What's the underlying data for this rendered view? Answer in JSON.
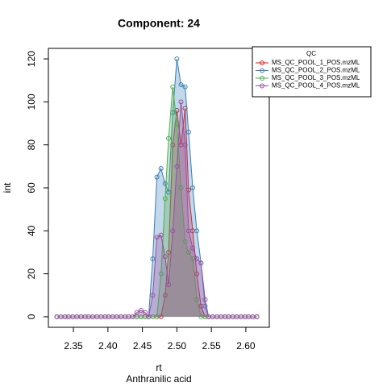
{
  "chart_data": {
    "type": "line",
    "title": "Component: 24",
    "xlabel": "rt",
    "ylabel": "int",
    "subtitle": "Anthranilic acid",
    "legend_title": "QC",
    "legend_position": "top-right",
    "area": true,
    "x": [
      2.326,
      2.332,
      2.338,
      2.343,
      2.349,
      2.355,
      2.361,
      2.367,
      2.372,
      2.378,
      2.384,
      2.39,
      2.396,
      2.401,
      2.407,
      2.413,
      2.419,
      2.425,
      2.43,
      2.436,
      2.442,
      2.448,
      2.454,
      2.459,
      2.465,
      2.471,
      2.477,
      2.483,
      2.488,
      2.494,
      2.5,
      2.506,
      2.512,
      2.517,
      2.523,
      2.529,
      2.535,
      2.541,
      2.546,
      2.552,
      2.558,
      2.564,
      2.57,
      2.575,
      2.581,
      2.587,
      2.593,
      2.599,
      2.604,
      2.61,
      2.616
    ],
    "series": [
      {
        "name": "MS_QC_POOL_1_POS.mzML",
        "color": "#E41A1C",
        "values": [
          0,
          0,
          0,
          0,
          0,
          0,
          0,
          0,
          0,
          0,
          0,
          0,
          0,
          0,
          0,
          0,
          0,
          0,
          0,
          0,
          0,
          0,
          0,
          0,
          0,
          0,
          0,
          10,
          30,
          80,
          96,
          80,
          97,
          59,
          40,
          20,
          5,
          0,
          0,
          0,
          0,
          0,
          0,
          0,
          0,
          0,
          0,
          0,
          0,
          0,
          0
        ]
      },
      {
        "name": "MS_QC_POOL_2_POS.mzML",
        "color": "#377EB8",
        "values": [
          0,
          0,
          0,
          0,
          0,
          0,
          0,
          0,
          0,
          0,
          0,
          0,
          0,
          0,
          0,
          0,
          0,
          0,
          0,
          0,
          0,
          0,
          0,
          0,
          27,
          65,
          69,
          62,
          58,
          95,
          120,
          108,
          107,
          86,
          60,
          40,
          25,
          5,
          0,
          0,
          0,
          0,
          0,
          0,
          0,
          0,
          0,
          0,
          0,
          0,
          0
        ]
      },
      {
        "name": "MS_QC_POOL_3_POS.mzML",
        "color": "#4DAF4A",
        "values": [
          0,
          0,
          0,
          0,
          0,
          0,
          0,
          0,
          0,
          0,
          0,
          0,
          0,
          0,
          0,
          0,
          0,
          0,
          0,
          0,
          0,
          0,
          0,
          0,
          0,
          0,
          20,
          55,
          83,
          107,
          90,
          60,
          35,
          30,
          27,
          8,
          0,
          0,
          0,
          0,
          0,
          0,
          0,
          0,
          0,
          0,
          0,
          0,
          0,
          0,
          0
        ]
      },
      {
        "name": "MS_QC_POOL_4_POS.mzML",
        "color": "#984EA3",
        "values": [
          0,
          0,
          0,
          0,
          0,
          0,
          0,
          0,
          0,
          0,
          0,
          0,
          0,
          0,
          0,
          0,
          0,
          0,
          0,
          0,
          2,
          3,
          2,
          0,
          10,
          37,
          38,
          28,
          15,
          40,
          70,
          100,
          80,
          40,
          32,
          27,
          25,
          8,
          0,
          0,
          0,
          0,
          0,
          0,
          0,
          0,
          0,
          0,
          0,
          0,
          0
        ]
      }
    ],
    "xlim": [
      2.3137,
      2.634
    ],
    "xticks": [
      2.35,
      {
        "value": 2.4,
        "label": "2.40"
      },
      2.45,
      {
        "value": 2.5,
        "label": "2.50"
      },
      2.55,
      {
        "value": 2.6,
        "label": "2.60"
      }
    ],
    "ylim": [
      -4.9,
      124.9
    ],
    "yticks": [
      0,
      20,
      40,
      60,
      80,
      100,
      120
    ]
  }
}
